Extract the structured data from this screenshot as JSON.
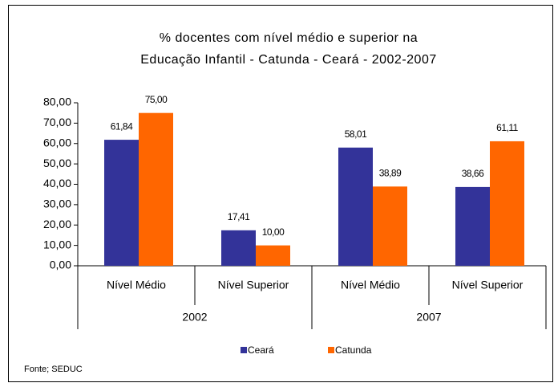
{
  "chart_data": {
    "type": "bar",
    "title": "% docentes com nível médio e superior na",
    "subtitle": "Educação Infantil - Catunda -  Ceará - 2002-2007",
    "categories": [
      "Nível Médio",
      "Nível Superior",
      "Nível Médio",
      "Nível Superior"
    ],
    "groups": [
      "2002",
      "2007"
    ],
    "series": [
      {
        "name": "Ceará",
        "color": "#333399",
        "values": [
          61.84,
          17.41,
          58.01,
          38.66
        ],
        "value_labels": [
          "61,84",
          "17,41",
          "58,01",
          "38,66"
        ]
      },
      {
        "name": "Catunda",
        "color": "#ff6600",
        "values": [
          75.0,
          10.0,
          38.89,
          61.11
        ],
        "value_labels": [
          "75,00",
          "10,00",
          "38,89",
          "61,11"
        ]
      }
    ],
    "ylim": [
      0,
      80
    ],
    "yticks": [
      {
        "value": 0,
        "label": "0,00"
      },
      {
        "value": 10,
        "label": "10,00"
      },
      {
        "value": 20,
        "label": "20,00"
      },
      {
        "value": 30,
        "label": "30,00"
      },
      {
        "value": 40,
        "label": "40,00"
      },
      {
        "value": 50,
        "label": "50,00"
      },
      {
        "value": 60,
        "label": "60,00"
      },
      {
        "value": 70,
        "label": "70,00"
      },
      {
        "value": 80,
        "label": "80,00"
      }
    ],
    "legend": "bottom",
    "note": "Fonte; SEDUC"
  }
}
